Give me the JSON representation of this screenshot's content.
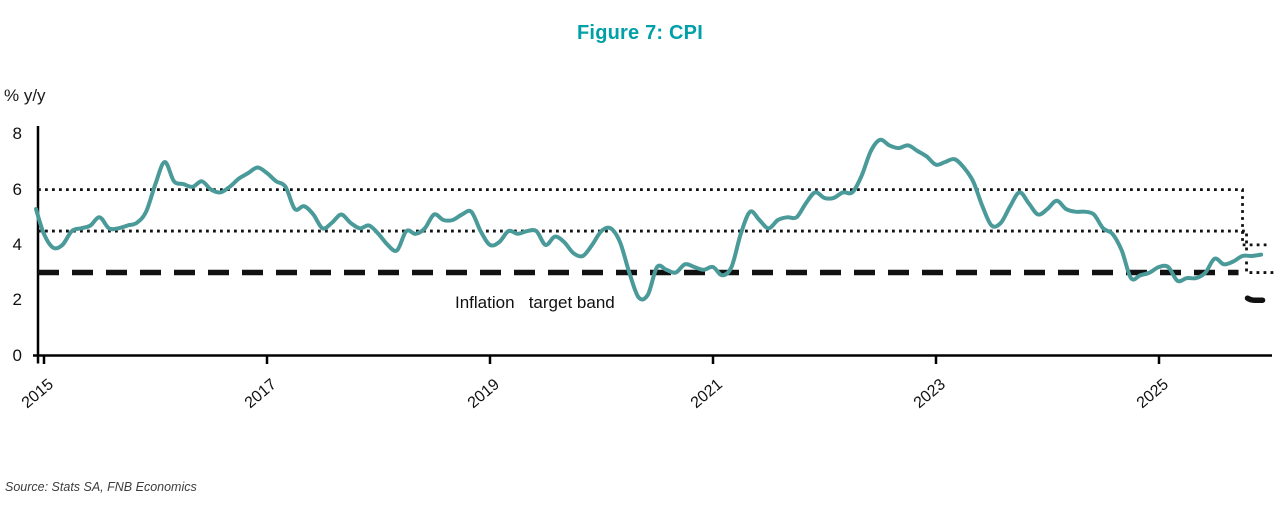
{
  "title": "Figure 7: CPI",
  "source": "Source: Stats SA, FNB Economics",
  "colors": {
    "title": "#00A0A8",
    "cpi_line": "#4A9A9A",
    "axis": "#000000",
    "target_lines": "#111111"
  },
  "chart_data": {
    "type": "line",
    "title": "Figure 7: CPI",
    "ylabel": "% y/y",
    "xlabel": "",
    "ylim": [
      0,
      8
    ],
    "yticks": [
      "8",
      "6",
      "4",
      "2",
      "0"
    ],
    "ytick_values": [
      8,
      6,
      4,
      2,
      0
    ],
    "xticks": [
      "2015",
      "2017",
      "2019",
      "2021",
      "2023",
      "2025"
    ],
    "xtick_years": [
      2015,
      2017,
      2019,
      2021,
      2023,
      2025
    ],
    "grid": false,
    "legend_position": "none",
    "annotation": "Inflation   target band",
    "series": [
      {
        "name": "CPI (% y/y)",
        "color": "#4A9A9A",
        "x_start": "2014-12",
        "x_end": "2025-12",
        "frequency": "monthly",
        "values": [
          5.3,
          4.4,
          3.9,
          4.0,
          4.5,
          4.6,
          4.7,
          5.0,
          4.6,
          4.6,
          4.7,
          4.8,
          5.2,
          6.2,
          7.0,
          6.3,
          6.2,
          6.1,
          6.3,
          6.0,
          5.9,
          6.1,
          6.4,
          6.6,
          6.8,
          6.6,
          6.3,
          6.1,
          5.3,
          5.4,
          5.1,
          4.6,
          4.8,
          5.1,
          4.8,
          4.6,
          4.7,
          4.4,
          4.0,
          3.8,
          4.5,
          4.4,
          4.6,
          5.1,
          4.9,
          4.9,
          5.1,
          5.2,
          4.5,
          4.0,
          4.1,
          4.5,
          4.4,
          4.5,
          4.5,
          4.0,
          4.3,
          4.1,
          3.7,
          3.6,
          4.0,
          4.5,
          4.6,
          4.1,
          3.0,
          2.1,
          2.2,
          3.2,
          3.1,
          3.0,
          3.3,
          3.2,
          3.1,
          3.2,
          2.9,
          3.2,
          4.4,
          5.2,
          4.9,
          4.6,
          4.9,
          5.0,
          5.0,
          5.5,
          5.9,
          5.7,
          5.7,
          5.9,
          5.9,
          6.5,
          7.4,
          7.8,
          7.6,
          7.5,
          7.6,
          7.4,
          7.2,
          6.9,
          7.0,
          7.1,
          6.8,
          6.3,
          5.4,
          4.7,
          4.8,
          5.4,
          5.9,
          5.5,
          5.1,
          5.3,
          5.6,
          5.3,
          5.2,
          5.2,
          5.1,
          4.6,
          4.4,
          3.8,
          2.8,
          2.9,
          3.0,
          3.2,
          3.2,
          2.7,
          2.8,
          2.8,
          3.0,
          3.5,
          3.3,
          3.4,
          3.6,
          3.6,
          3.65
        ]
      }
    ],
    "target_lines": [
      {
        "name": "target band upper",
        "style": "dotted",
        "steps": [
          {
            "until": "2025-10",
            "value": 6.0
          },
          {
            "until": "2025-12",
            "value": 4.0
          }
        ]
      },
      {
        "name": "target band midpoint",
        "style": "dotted",
        "steps": [
          {
            "until": "2025-10",
            "value": 4.5
          },
          {
            "until": "2025-12",
            "value": 3.0
          }
        ]
      },
      {
        "name": "inflation target",
        "style": "dashed",
        "steps": [
          {
            "until": "2025-10",
            "value": 3.0
          },
          {
            "until": "2025-12",
            "value": 2.0
          }
        ]
      }
    ]
  }
}
